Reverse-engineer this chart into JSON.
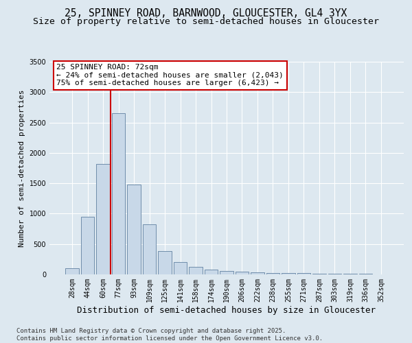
{
  "title": "25, SPINNEY ROAD, BARNWOOD, GLOUCESTER, GL4 3YX",
  "subtitle": "Size of property relative to semi-detached houses in Gloucester",
  "xlabel": "Distribution of semi-detached houses by size in Gloucester",
  "ylabel": "Number of semi-detached properties",
  "categories": [
    "28sqm",
    "44sqm",
    "60sqm",
    "77sqm",
    "93sqm",
    "109sqm",
    "125sqm",
    "141sqm",
    "158sqm",
    "174sqm",
    "190sqm",
    "206sqm",
    "222sqm",
    "238sqm",
    "255sqm",
    "271sqm",
    "287sqm",
    "303sqm",
    "319sqm",
    "336sqm",
    "352sqm"
  ],
  "values": [
    100,
    950,
    1820,
    2650,
    1480,
    820,
    380,
    200,
    120,
    75,
    55,
    40,
    30,
    25,
    20,
    18,
    15,
    12,
    10,
    8,
    5
  ],
  "bar_color": "#c8d8e8",
  "bar_edge_color": "#6080a0",
  "vline_color": "#cc0000",
  "annotation_text": "25 SPINNEY ROAD: 72sqm\n← 24% of semi-detached houses are smaller (2,043)\n75% of semi-detached houses are larger (6,423) →",
  "annotation_box_color": "#ffffff",
  "annotation_box_edge": "#cc0000",
  "ylim": [
    0,
    3500
  ],
  "yticks": [
    0,
    500,
    1000,
    1500,
    2000,
    2500,
    3000,
    3500
  ],
  "background_color": "#dde8f0",
  "plot_background_color": "#dde8f0",
  "grid_color": "#ffffff",
  "footer_text": "Contains HM Land Registry data © Crown copyright and database right 2025.\nContains public sector information licensed under the Open Government Licence v3.0.",
  "title_fontsize": 10.5,
  "subtitle_fontsize": 9.5,
  "xlabel_fontsize": 9,
  "ylabel_fontsize": 8,
  "tick_fontsize": 7,
  "footer_fontsize": 6.5,
  "ann_fontsize": 8
}
